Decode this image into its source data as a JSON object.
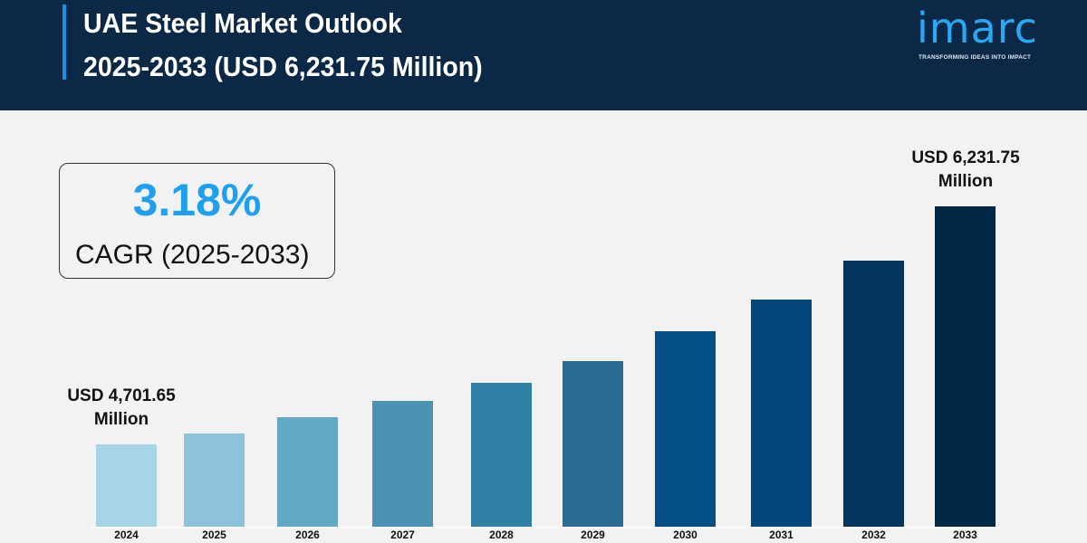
{
  "header": {
    "title_line1": "UAE Steel Market Outlook",
    "title_line2": "2025-2033 (USD 6,231.75 Million)",
    "logo_word": "imarc",
    "logo_tagline": "TRANSFORMING IDEAS INTO IMPACT"
  },
  "cagr": {
    "value": "3.18%",
    "label": "CAGR (2025-2033)"
  },
  "chart_data": {
    "type": "bar",
    "title": "",
    "xlabel": "",
    "ylabel": "",
    "grid": false,
    "categories": [
      "2024",
      "2025",
      "2026",
      "2027",
      "2028",
      "2029",
      "2030",
      "2031",
      "2032",
      "2033"
    ],
    "values": [
      4701.65,
      4771,
      4876,
      4981,
      5097,
      5237,
      5429,
      5632,
      5883,
      6231.75
    ],
    "units": "USD Million",
    "data_labels": {
      "first": {
        "line1": "USD 4,701.65",
        "line2": "Million"
      },
      "last": {
        "line1": "USD 6,231.75",
        "line2": "Million"
      }
    },
    "colors": [
      "#a8d5e6",
      "#8cc3da",
      "#63a9c5",
      "#4a93b2",
      "#2f80a4",
      "#2a6b94",
      "#034e86",
      "#03477b",
      "#02365f",
      "#022845"
    ]
  }
}
